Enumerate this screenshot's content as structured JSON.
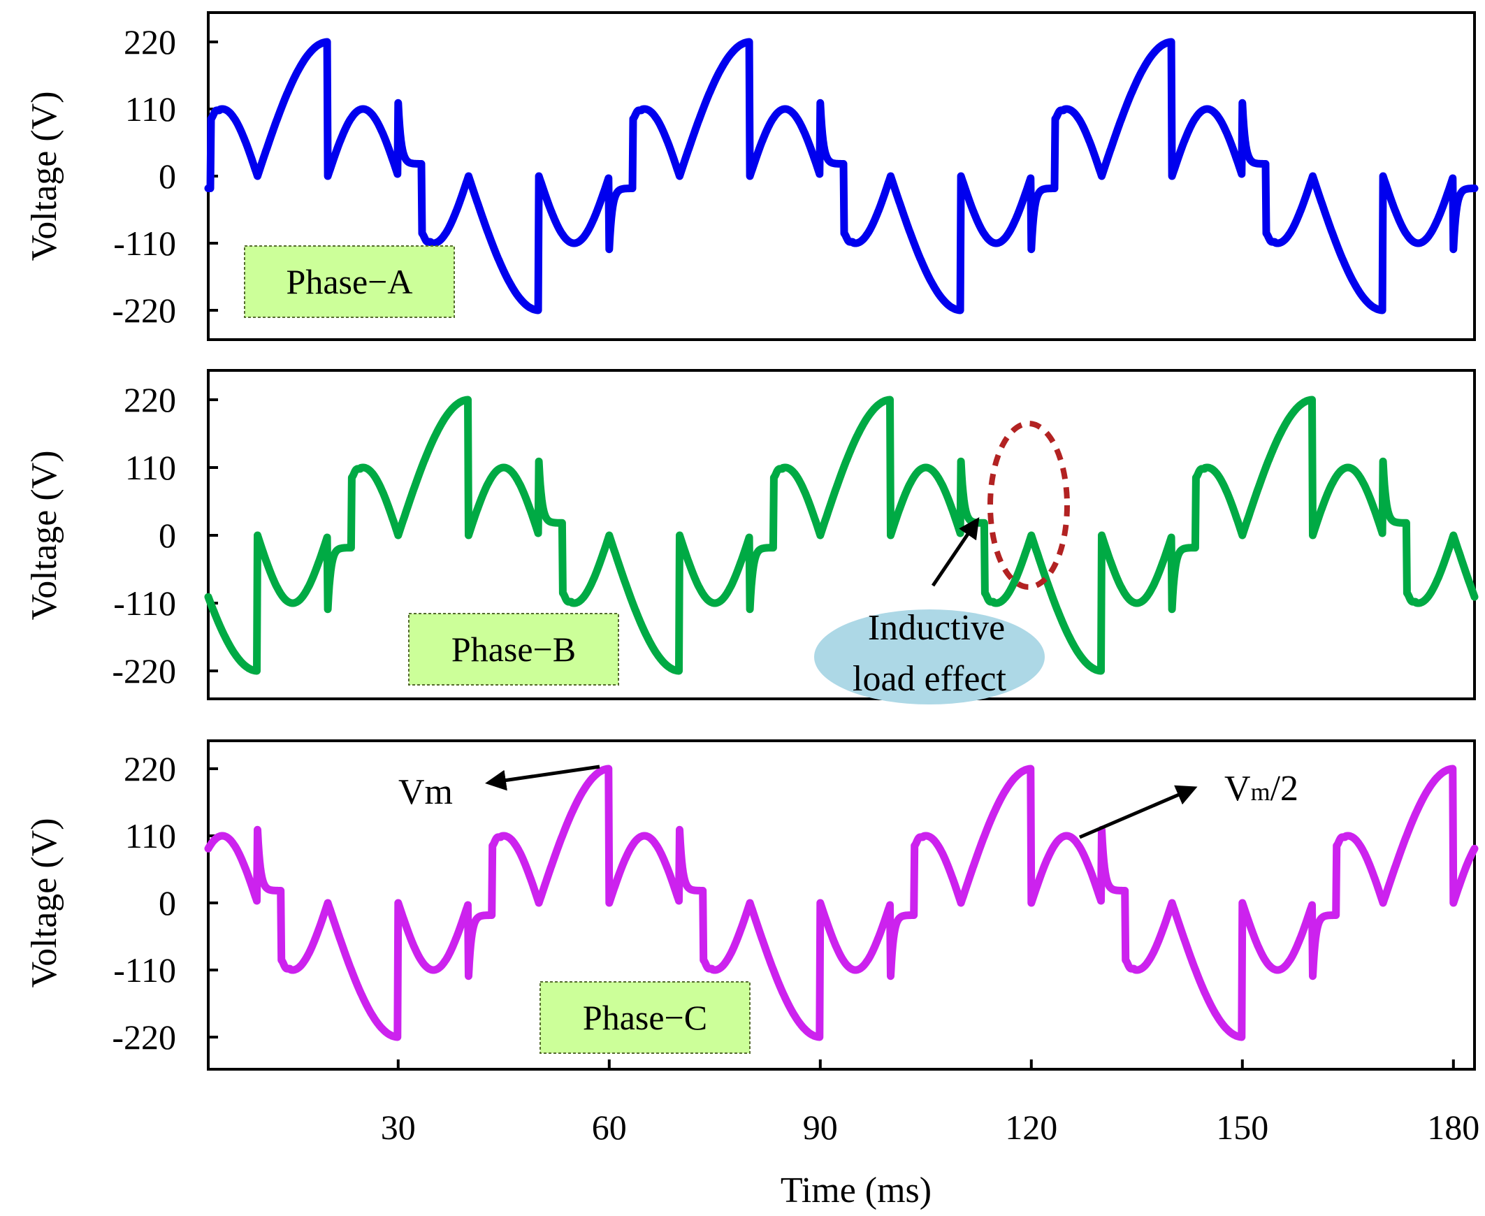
{
  "chart_data": [
    {
      "type": "line",
      "panel": "top",
      "legend_label": "Phase−A",
      "ylabel": "Voltage (V)",
      "yticks": [
        "220",
        "110",
        "0",
        "-110",
        "-220"
      ],
      "ylim": [
        -250,
        250
      ],
      "xlim": [
        3,
        183
      ],
      "color": "#0000ee",
      "series": [
        {
          "name": "Phase-A",
          "phase_shift_deg": 0,
          "peak_V": 220,
          "half_peak_V": 110,
          "period_ms": 60
        }
      ]
    },
    {
      "type": "line",
      "panel": "middle",
      "legend_label": "Phase−B",
      "ylabel": "Voltage (V)",
      "yticks": [
        "220",
        "110",
        "0",
        "-110",
        "-220"
      ],
      "ylim": [
        -250,
        250
      ],
      "xlim": [
        3,
        183
      ],
      "color": "#00aa44",
      "series": [
        {
          "name": "Phase-B",
          "phase_shift_deg": 120,
          "peak_V": 220,
          "half_peak_V": 110,
          "period_ms": 60
        }
      ],
      "annotation": {
        "line1": "Inductive",
        "line2": "load effect"
      }
    },
    {
      "type": "line",
      "panel": "bottom",
      "legend_label": "Phase−C",
      "ylabel": "Voltage (V)",
      "yticks": [
        "220",
        "110",
        "0",
        "-110",
        "-220"
      ],
      "ylim": [
        -250,
        250
      ],
      "xlim": [
        3,
        183
      ],
      "color": "#cc22ee",
      "series": [
        {
          "name": "Phase-C",
          "phase_shift_deg": 240,
          "peak_V": 220,
          "half_peak_V": 110,
          "period_ms": 60
        }
      ],
      "xlabel": "Time (ms)",
      "xticks": [
        30,
        60,
        90,
        120,
        150,
        180
      ],
      "annotations": {
        "vm": "Vm",
        "vm2_main": "V",
        "vm2_sub": "m",
        "vm2_tail": "/2"
      }
    }
  ]
}
